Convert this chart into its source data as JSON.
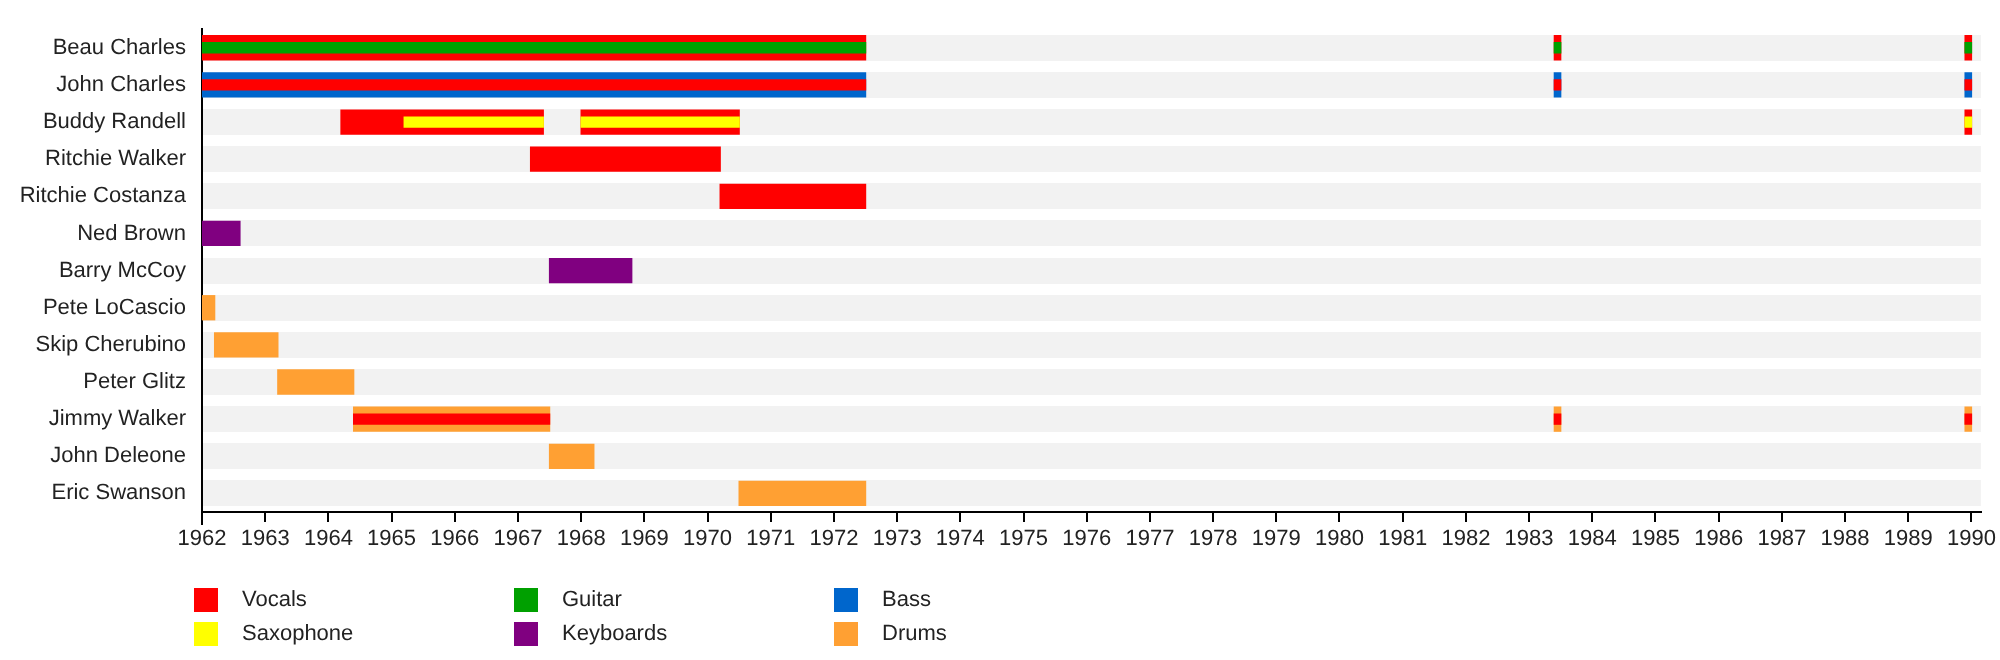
{
  "chart_data": {
    "type": "bar",
    "orientation": "horizontal",
    "categories": [
      "Beau Charles",
      "John Charles",
      "Buddy Randell",
      "Ritchie Walker",
      "Ritchie Costanza",
      "Ned Brown",
      "Barry McCoy",
      "Pete LoCascio",
      "Skip Cherubino",
      "Peter Glitz",
      "Jimmy Walker",
      "John Deleone",
      "Eric Swanson"
    ],
    "series": [
      {
        "name": "Vocals",
        "color": "#ff0000",
        "values": [
          10.5,
          null,
          3.2,
          3.0,
          2.3,
          null,
          null,
          null,
          null,
          null,
          null,
          null,
          null
        ],
        "base": [
          1962,
          null,
          1964.2,
          1967.2,
          1970.2,
          null,
          null,
          null,
          null,
          null,
          null,
          null,
          null
        ]
      },
      {
        "name": "Guitar",
        "color": "#00a000",
        "values": [
          10.5,
          null,
          null,
          null,
          null,
          null,
          null,
          null,
          null,
          null,
          null,
          null,
          null
        ],
        "base": [
          1962,
          null,
          null,
          null,
          null,
          null,
          null,
          null,
          null,
          null,
          null,
          null,
          null
        ]
      },
      {
        "name": "Bass",
        "color": "#0066cc",
        "values": [
          null,
          10.5,
          null,
          null,
          null,
          null,
          null,
          null,
          null,
          null,
          null,
          null,
          null
        ],
        "base": [
          null,
          1962,
          null,
          null,
          null,
          null,
          null,
          null,
          null,
          null,
          null,
          null,
          null
        ]
      },
      {
        "name": "Saxophone",
        "color": "#ffff00",
        "values": [
          null,
          null,
          2.2,
          null,
          null,
          null,
          null,
          null,
          null,
          null,
          null,
          null,
          null
        ],
        "base": [
          null,
          null,
          1965.2,
          null,
          null,
          null,
          null,
          null,
          null,
          null,
          null,
          null,
          null
        ]
      },
      {
        "name": "Keyboards",
        "color": "#800080",
        "values": [
          null,
          null,
          null,
          null,
          null,
          0.6,
          1.3,
          null,
          null,
          null,
          null,
          null,
          null
        ],
        "base": [
          null,
          null,
          null,
          null,
          null,
          1962,
          1967.5,
          null,
          null,
          null,
          null,
          null,
          null
        ]
      },
      {
        "name": "Drums",
        "color": "#ffa033",
        "values": [
          null,
          null,
          null,
          null,
          null,
          null,
          null,
          0.2,
          1.0,
          1.2,
          3.1,
          0.7,
          2.0
        ],
        "base": [
          null,
          null,
          null,
          null,
          null,
          null,
          null,
          1962,
          1962.2,
          1963.2,
          1964.4,
          1967.5,
          1970.5
        ]
      },
      {
        "color": "#ff0000",
        "values": [
          0.1,
          null,
          2.5,
          null,
          null,
          null,
          null,
          null,
          null,
          null,
          null,
          null,
          null
        ],
        "base": [
          1983.4,
          null,
          1968.0,
          null,
          null,
          null,
          null,
          null,
          null,
          null,
          null,
          null,
          null
        ]
      },
      {
        "color": "#ff0000",
        "values": [
          0.1,
          null,
          0.1,
          null,
          null,
          null,
          null,
          null,
          null,
          null,
          null,
          null,
          null
        ],
        "base": [
          1989.9,
          null,
          1989.9,
          null,
          null,
          null,
          null,
          null,
          null,
          null,
          null,
          null,
          null
        ]
      },
      {
        "color": "#0066cc",
        "values": [
          null,
          0.1,
          null,
          null,
          null,
          null,
          null,
          null,
          null,
          null,
          null,
          null,
          null
        ],
        "base": [
          null,
          1983.4,
          null,
          null,
          null,
          null,
          null,
          null,
          null,
          null,
          null,
          null,
          null
        ]
      },
      {
        "color": "#0066cc",
        "values": [
          null,
          0.1,
          null,
          null,
          null,
          null,
          null,
          null,
          null,
          null,
          null,
          null,
          null
        ],
        "base": [
          null,
          1989.9,
          null,
          null,
          null,
          null,
          null,
          null,
          null,
          null,
          null,
          null,
          null
        ]
      },
      {
        "color": "#ffa033",
        "values": [
          null,
          null,
          null,
          null,
          null,
          null,
          null,
          null,
          null,
          null,
          0.1,
          null,
          null
        ],
        "base": [
          null,
          null,
          null,
          null,
          null,
          null,
          null,
          null,
          null,
          null,
          1983.4,
          null,
          null
        ]
      },
      {
        "color": "#ffa033",
        "values": [
          null,
          null,
          null,
          null,
          null,
          null,
          null,
          null,
          null,
          null,
          0.1,
          null,
          null
        ],
        "base": [
          null,
          null,
          null,
          null,
          null,
          null,
          null,
          null,
          null,
          null,
          1989.9,
          null,
          null
        ]
      },
      {
        "color": "#ff0000",
        "values": [
          null,
          10.5,
          null,
          null,
          null,
          null,
          null,
          null,
          null,
          null,
          3.1,
          null,
          null
        ],
        "base": [
          null,
          1962,
          null,
          null,
          null,
          null,
          null,
          null,
          null,
          null,
          1964.4,
          null,
          null
        ]
      },
      {
        "color": "#ff0000",
        "values": [
          null,
          0.1,
          null,
          null,
          null,
          null,
          null,
          null,
          null,
          null,
          0.1,
          null,
          null
        ],
        "base": [
          null,
          1983.4,
          null,
          null,
          null,
          null,
          null,
          null,
          null,
          null,
          1983.4,
          null,
          null
        ]
      },
      {
        "color": "#ff0000",
        "values": [
          null,
          0.1,
          null,
          null,
          null,
          null,
          null,
          null,
          null,
          null,
          0.1,
          null,
          null
        ],
        "base": [
          null,
          1989.9,
          null,
          null,
          null,
          null,
          null,
          null,
          null,
          null,
          1989.9,
          null,
          null
        ]
      },
      {
        "color": "#00a000",
        "values": [
          0.1,
          null,
          null,
          null,
          null,
          null,
          null,
          null,
          null,
          null,
          null,
          null,
          null
        ],
        "base": [
          1983.4,
          null,
          null,
          null,
          null,
          null,
          null,
          null,
          null,
          null,
          null,
          null,
          null
        ]
      },
      {
        "color": "#00a000",
        "values": [
          0.1,
          null,
          null,
          null,
          null,
          null,
          null,
          null,
          null,
          null,
          null,
          null,
          null
        ],
        "base": [
          1989.9,
          null,
          null,
          null,
          null,
          null,
          null,
          null,
          null,
          null,
          null,
          null,
          null
        ]
      },
      {
        "color": "#ffff00",
        "values": [
          null,
          null,
          2.5,
          null,
          null,
          null,
          null,
          null,
          null,
          null,
          null,
          null,
          null
        ],
        "base": [
          null,
          null,
          1968.0,
          null,
          null,
          null,
          null,
          null,
          null,
          null,
          null,
          null,
          null
        ]
      },
      {
        "color": "#ffff00",
        "values": [
          null,
          null,
          0.1,
          null,
          null,
          null,
          null,
          null,
          null,
          null,
          null,
          null,
          null
        ],
        "base": [
          null,
          null,
          1989.9,
          null,
          null,
          null,
          null,
          null,
          null,
          null,
          null,
          null,
          null
        ]
      }
    ],
    "xlim": [
      1962,
      1990.15
    ],
    "xticks": [
      1962,
      1963,
      1964,
      1965,
      1966,
      1967,
      1968,
      1969,
      1970,
      1971,
      1972,
      1973,
      1974,
      1975,
      1976,
      1977,
      1978,
      1979,
      1980,
      1981,
      1982,
      1983,
      1984,
      1985,
      1986,
      1987,
      1988,
      1989,
      1990
    ],
    "grid": "y",
    "legend": "bottom left"
  }
}
